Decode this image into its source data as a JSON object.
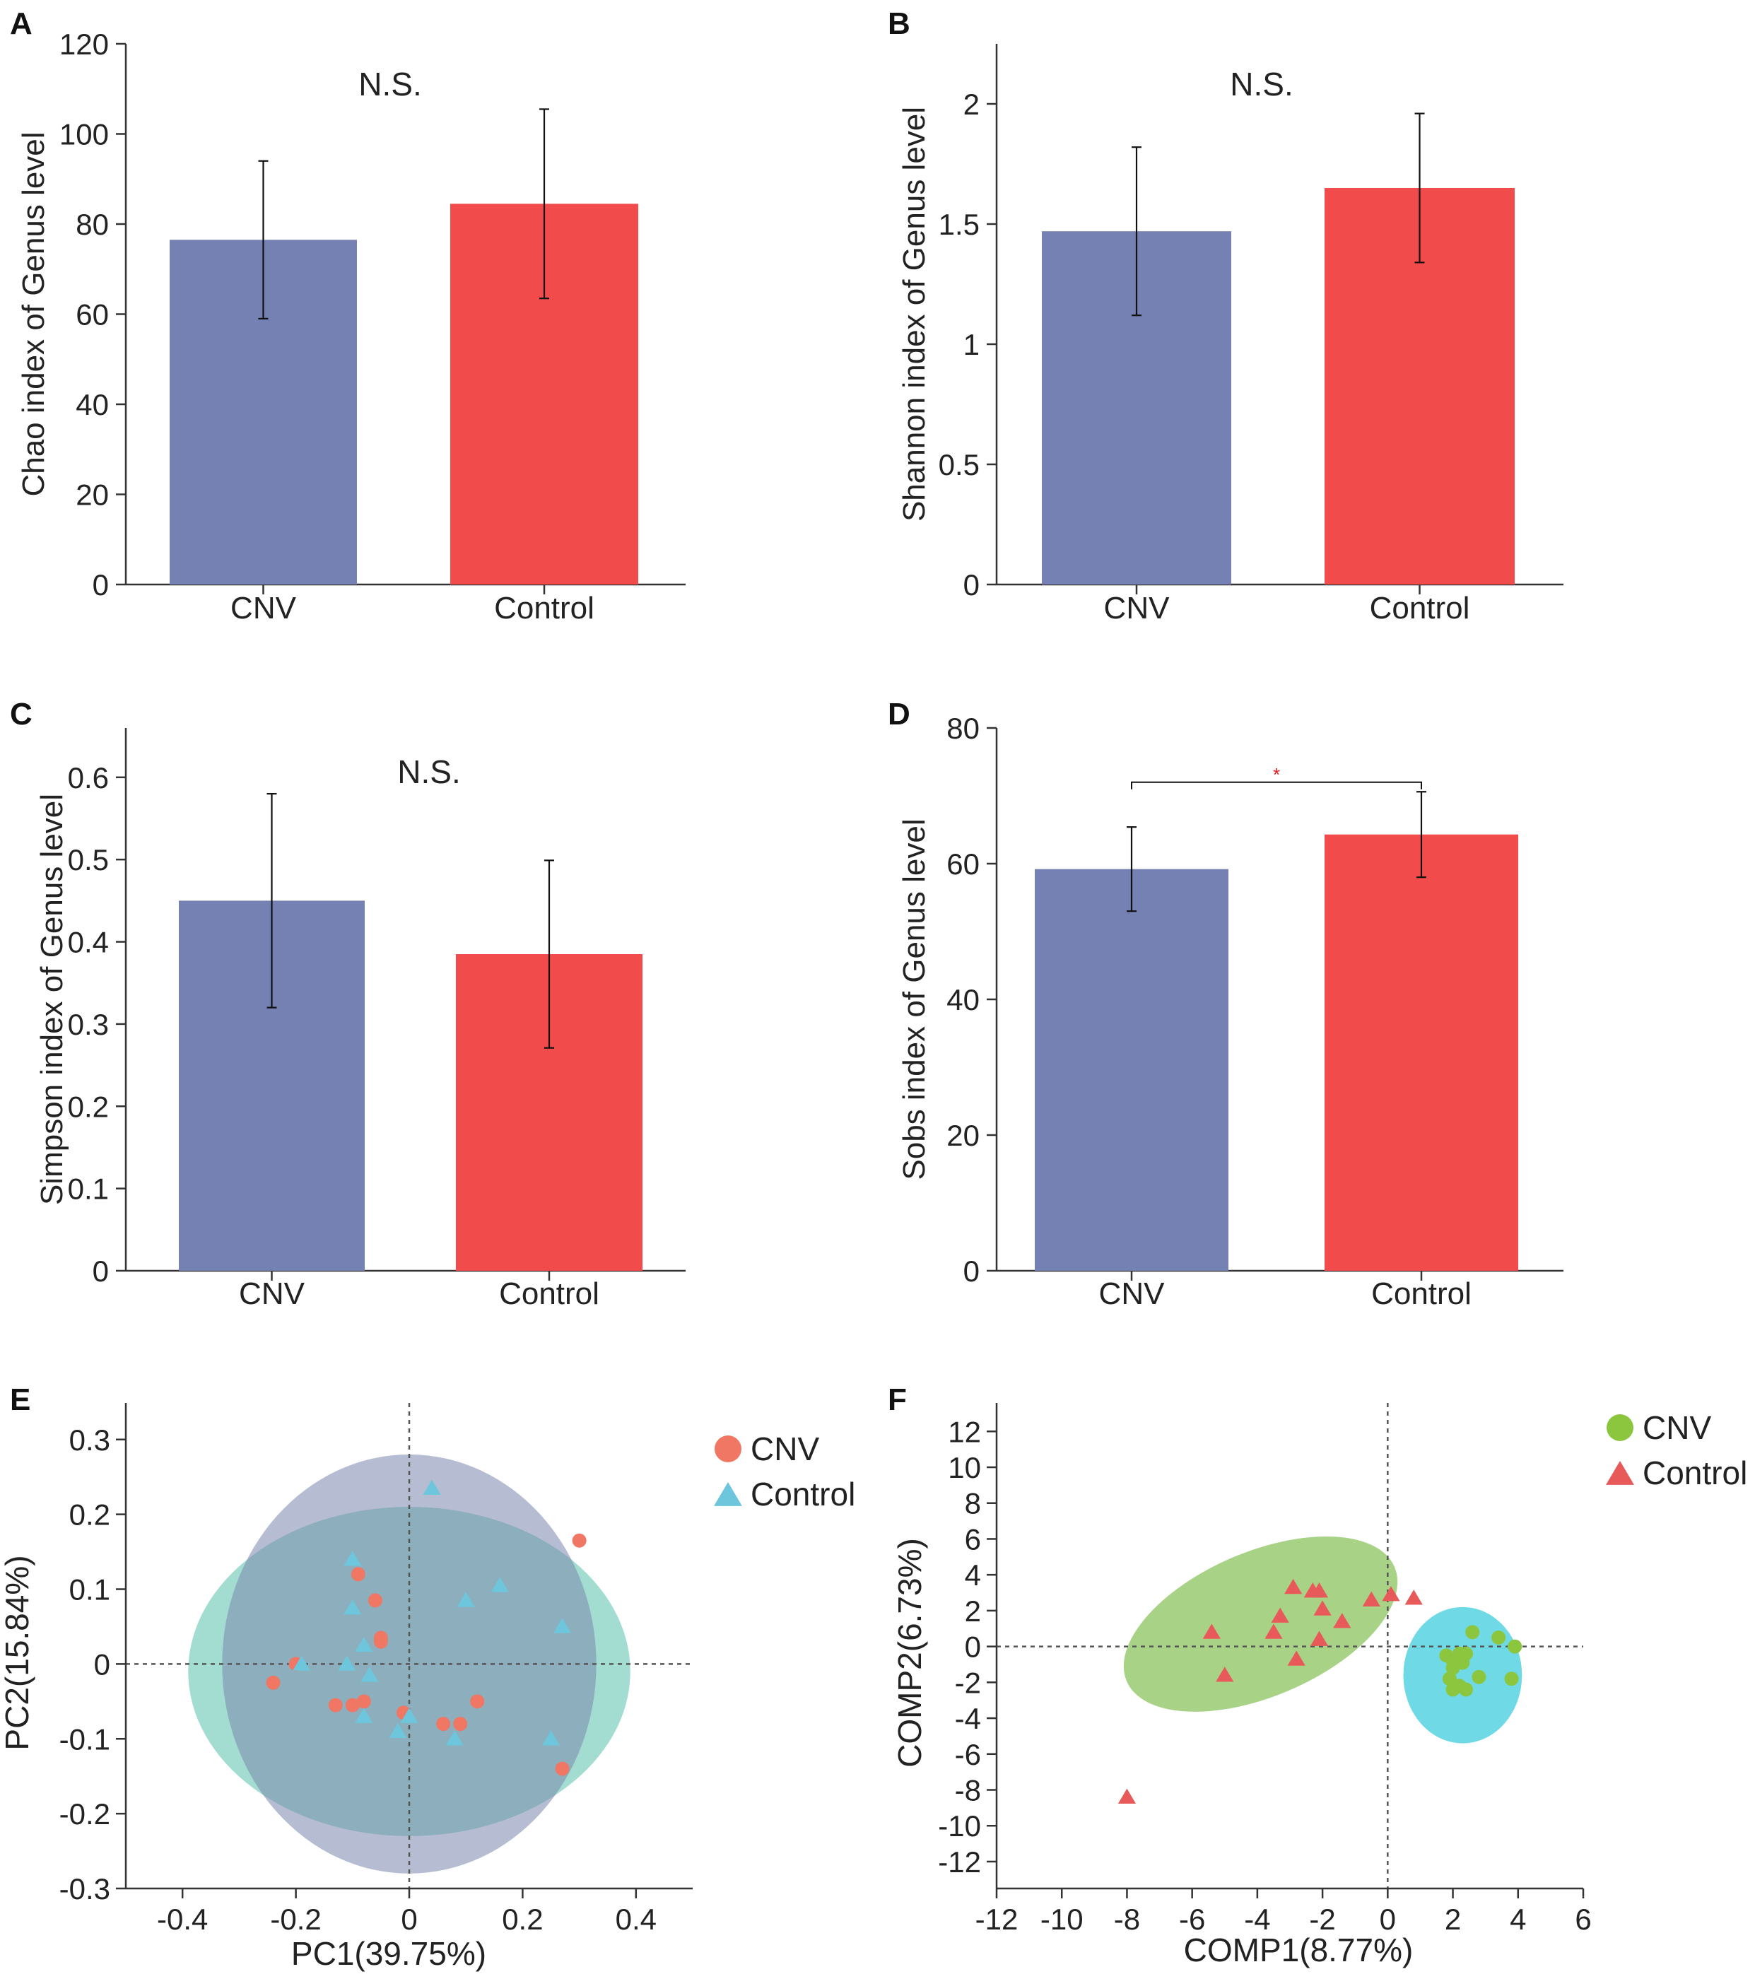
{
  "chart_data": [
    {
      "panel": "A",
      "type": "bar",
      "categories": [
        "CNV",
        "Control"
      ],
      "values": [
        76.5,
        84.5
      ],
      "errors": [
        17.5,
        21
      ],
      "colors": [
        "#7580b3",
        "#f24b4c"
      ],
      "ylabel": "Chao index of Genus level",
      "ylim": [
        0,
        120
      ],
      "yticks": [
        "0",
        "20",
        "40",
        "60",
        "80",
        "100",
        "120"
      ],
      "annotation": "N.S."
    },
    {
      "panel": "B",
      "type": "bar",
      "categories": [
        "CNV",
        "Control"
      ],
      "values": [
        1.47,
        1.65
      ],
      "errors": [
        0.35,
        0.31
      ],
      "colors": [
        "#7580b3",
        "#f24b4c"
      ],
      "ylabel": "Shannon index of Genus level",
      "ylim": [
        0,
        2.25
      ],
      "yticks": [
        "0",
        "0.5",
        "1",
        "1.5",
        "2"
      ],
      "annotation": "N.S."
    },
    {
      "panel": "C",
      "type": "bar",
      "categories": [
        "CNV",
        "Control"
      ],
      "values": [
        0.45,
        0.385
      ],
      "errors": [
        0.13,
        0.114
      ],
      "colors": [
        "#7580b3",
        "#f24b4c"
      ],
      "ylabel": "Simpson index of Genus level",
      "ylim": [
        0,
        0.66
      ],
      "yticks": [
        "0",
        "0.1",
        "0.2",
        "0.3",
        "0.4",
        "0.5",
        "0.6"
      ],
      "annotation": "N.S."
    },
    {
      "panel": "D",
      "type": "bar",
      "categories": [
        "CNV",
        "Control"
      ],
      "values": [
        59.2,
        64.3
      ],
      "errors": [
        6.2,
        6.3
      ],
      "colors": [
        "#7580b3",
        "#f24b4c"
      ],
      "ylabel": "Sobs index of Genus level",
      "ylim": [
        0,
        80
      ],
      "yticks": [
        "0",
        "20",
        "40",
        "60",
        "80"
      ],
      "annotation": "*",
      "annotation_color": "#e0201f"
    },
    {
      "panel": "E",
      "type": "scatter",
      "xlabel": "PC1(39.75%)",
      "ylabel": "PC2(15.84%)",
      "xlim": [
        -0.5,
        0.5
      ],
      "ylim": [
        -0.3,
        0.33
      ],
      "xticks": [
        "-0.4",
        "-0.2",
        "0",
        "0.2",
        "0.4"
      ],
      "yticks": [
        "-0.3",
        "-0.2",
        "-0.1",
        "0",
        "0.1",
        "0.2",
        "0.3"
      ],
      "legend_position": "top-right",
      "ellipses": [
        {
          "group": "Control",
          "cx": 0.0,
          "cy": -0.01,
          "rx": 0.39,
          "ry": 0.22,
          "color": "#66c7b2",
          "opacity": 0.6
        },
        {
          "group": "CNV",
          "cx": 0.0,
          "cy": 0.0,
          "rx": 0.33,
          "ry": 0.28,
          "color": "#7a86ad",
          "opacity": 0.55
        }
      ],
      "series": [
        {
          "name": "CNV",
          "marker": "circle",
          "color": "#ef7763",
          "points": [
            [
              0.3,
              0.165
            ],
            [
              -0.09,
              0.12
            ],
            [
              -0.06,
              0.085
            ],
            [
              -0.05,
              0.035
            ],
            [
              -0.05,
              0.03
            ],
            [
              -0.24,
              -0.025
            ],
            [
              -0.13,
              -0.055
            ],
            [
              -0.1,
              -0.055
            ],
            [
              -0.08,
              -0.05
            ],
            [
              -0.01,
              -0.065
            ],
            [
              0.06,
              -0.08
            ],
            [
              0.09,
              -0.08
            ],
            [
              0.12,
              -0.05
            ],
            [
              0.27,
              -0.14
            ],
            [
              -0.2,
              0.0
            ]
          ]
        },
        {
          "name": "Control",
          "marker": "triangle",
          "color": "#6ec6dd",
          "points": [
            [
              0.04,
              0.235
            ],
            [
              -0.1,
              0.14
            ],
            [
              -0.1,
              0.075
            ],
            [
              0.1,
              0.085
            ],
            [
              0.16,
              0.105
            ],
            [
              0.27,
              0.05
            ],
            [
              -0.08,
              0.025
            ],
            [
              -0.19,
              0.0
            ],
            [
              -0.11,
              0.0
            ],
            [
              -0.07,
              -0.015
            ],
            [
              -0.08,
              -0.07
            ],
            [
              0.0,
              -0.07
            ],
            [
              -0.02,
              -0.09
            ],
            [
              0.08,
              -0.1
            ],
            [
              0.25,
              -0.1
            ]
          ]
        }
      ]
    },
    {
      "panel": "F",
      "type": "scatter",
      "xlabel": "COMP1(8.77%)",
      "ylabel": "COMP2(6.73%)",
      "xlim": [
        -12,
        6
      ],
      "ylim": [
        -13.5,
        12.8
      ],
      "xticks": [
        "-12",
        "-10",
        "-8",
        "-6",
        "-4",
        "-2",
        "0",
        "2",
        "4",
        "6"
      ],
      "yticks": [
        "-12",
        "-10",
        "-8",
        "-6",
        "-4",
        "-2",
        "0",
        "2",
        "4",
        "6",
        "8",
        "10",
        "12"
      ],
      "legend_position": "top-right",
      "ellipses": [
        {
          "group": "Control",
          "cx": -3.9,
          "cy": 1.25,
          "rx": 5.2,
          "ry": 2.95,
          "angle_deg": 37.8,
          "color": "#8fc765",
          "opacity": 0.78
        },
        {
          "group": "CNV",
          "cx": 2.3,
          "cy": -1.6,
          "rx": 1.82,
          "ry": 3.8,
          "angle_deg": 0,
          "color": "#5fd6e3",
          "opacity": 0.9
        }
      ],
      "series": [
        {
          "name": "CNV",
          "marker": "circle",
          "color": "#8cc63e",
          "points": [
            [
              2.6,
              0.8
            ],
            [
              3.4,
              0.5
            ],
            [
              3.9,
              0.0
            ],
            [
              1.8,
              -0.5
            ],
            [
              2.2,
              -0.4
            ],
            [
              2.4,
              -0.4
            ],
            [
              2.0,
              -0.8
            ],
            [
              2.3,
              -0.9
            ],
            [
              2.0,
              -1.2
            ],
            [
              2.8,
              -1.7
            ],
            [
              1.9,
              -1.8
            ],
            [
              3.8,
              -1.8
            ],
            [
              2.2,
              -2.2
            ],
            [
              2.0,
              -2.4
            ],
            [
              2.4,
              -2.4
            ]
          ]
        },
        {
          "name": "Control",
          "marker": "triangle",
          "color": "#e85a5a",
          "points": [
            [
              -2.9,
              3.3
            ],
            [
              -2.3,
              3.1
            ],
            [
              -2.1,
              3.1
            ],
            [
              0.1,
              2.9
            ],
            [
              0.8,
              2.7
            ],
            [
              -0.5,
              2.6
            ],
            [
              -2.0,
              2.1
            ],
            [
              -3.3,
              1.7
            ],
            [
              -1.4,
              1.4
            ],
            [
              -5.4,
              0.8
            ],
            [
              -3.5,
              0.8
            ],
            [
              -2.1,
              0.4
            ],
            [
              -2.8,
              -0.7
            ],
            [
              -5.0,
              -1.6
            ],
            [
              -8.0,
              -8.4
            ]
          ]
        }
      ],
      "legend": [
        {
          "name": "CNV",
          "marker": "circle",
          "color": "#8cc63e"
        },
        {
          "name": "Control",
          "marker": "triangle",
          "color": "#e85a5a"
        }
      ]
    }
  ]
}
